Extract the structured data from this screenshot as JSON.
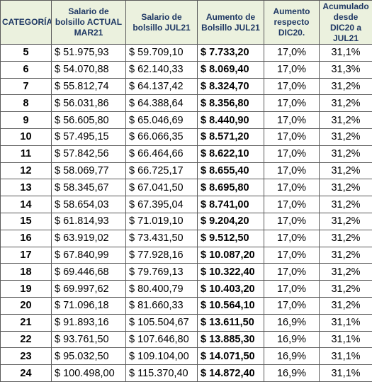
{
  "table": {
    "header": [
      "CATEGORÍA",
      "Salario de bolsillo ACTUAL MAR21",
      "Salario de bolsillo JUL21",
      "Aumento de Bolsillo JUL21",
      "Aumento respecto DIC20.",
      "Acumulado desde DIC20 a JUL21"
    ],
    "rows": [
      [
        "5",
        "$ 51.975,93",
        "$ 59.709,10",
        "$ 7.733,20",
        "17,0%",
        "31,1%"
      ],
      [
        "6",
        "$ 54.070,88",
        "$ 62.140,33",
        "$ 8.069,40",
        "17,0%",
        "31,3%"
      ],
      [
        "7",
        "$ 55.812,74",
        "$ 64.137,42",
        "$ 8.324,70",
        "17,0%",
        "31,2%"
      ],
      [
        "8",
        "$ 56.031,86",
        "$ 64.388,64",
        "$ 8.356,80",
        "17,0%",
        "31,2%"
      ],
      [
        "9",
        "$ 56.605,80",
        "$ 65.046,69",
        "$ 8.440,90",
        "17,0%",
        "31,2%"
      ],
      [
        "10",
        "$ 57.495,15",
        "$ 66.066,35",
        "$ 8.571,20",
        "17,0%",
        "31,2%"
      ],
      [
        "11",
        "$ 57.842,56",
        "$ 66.464,66",
        "$ 8.622,10",
        "17,0%",
        "31,2%"
      ],
      [
        "12",
        "$ 58.069,77",
        "$ 66.725,17",
        "$ 8.655,40",
        "17,0%",
        "31,2%"
      ],
      [
        "13",
        "$ 58.345,67",
        "$ 67.041,50",
        "$ 8.695,80",
        "17,0%",
        "31,2%"
      ],
      [
        "14",
        "$ 58.654,03",
        "$ 67.395,04",
        "$ 8.741,00",
        "17,0%",
        "31,2%"
      ],
      [
        "15",
        "$ 61.814,93",
        "$ 71.019,10",
        "$ 9.204,20",
        "17,0%",
        "31,2%"
      ],
      [
        "16",
        "$ 63.919,02",
        "$ 73.431,50",
        "$ 9.512,50",
        "17,0%",
        "31,2%"
      ],
      [
        "17",
        "$ 67.840,99",
        "$ 77.928,16",
        "$ 10.087,20",
        "17,0%",
        "31,2%"
      ],
      [
        "18",
        "$ 69.446,68",
        "$ 79.769,13",
        "$ 10.322,40",
        "17,0%",
        "31,2%"
      ],
      [
        "19",
        "$ 69.997,62",
        "$ 80.400,79",
        "$ 10.403,20",
        "17,0%",
        "31,2%"
      ],
      [
        "20",
        "$ 71.096,18",
        "$ 81.660,33",
        "$ 10.564,10",
        "17,0%",
        "31,2%"
      ],
      [
        "21",
        "$ 91.893,16",
        "$ 105.504,67",
        "$ 13.611,50",
        "16,9%",
        "31,1%"
      ],
      [
        "22",
        "$ 93.761,50",
        "$ 107.646,80",
        "$ 13.885,30",
        "16,9%",
        "31,1%"
      ],
      [
        "23",
        "$ 95.032,50",
        "$ 109.104,00",
        "$ 14.071,50",
        "16,9%",
        "31,1%"
      ],
      [
        "24",
        "$ 100.498,00",
        "$ 115.370,40",
        "$ 14.872,40",
        "16,9%",
        "31,1%"
      ]
    ]
  }
}
